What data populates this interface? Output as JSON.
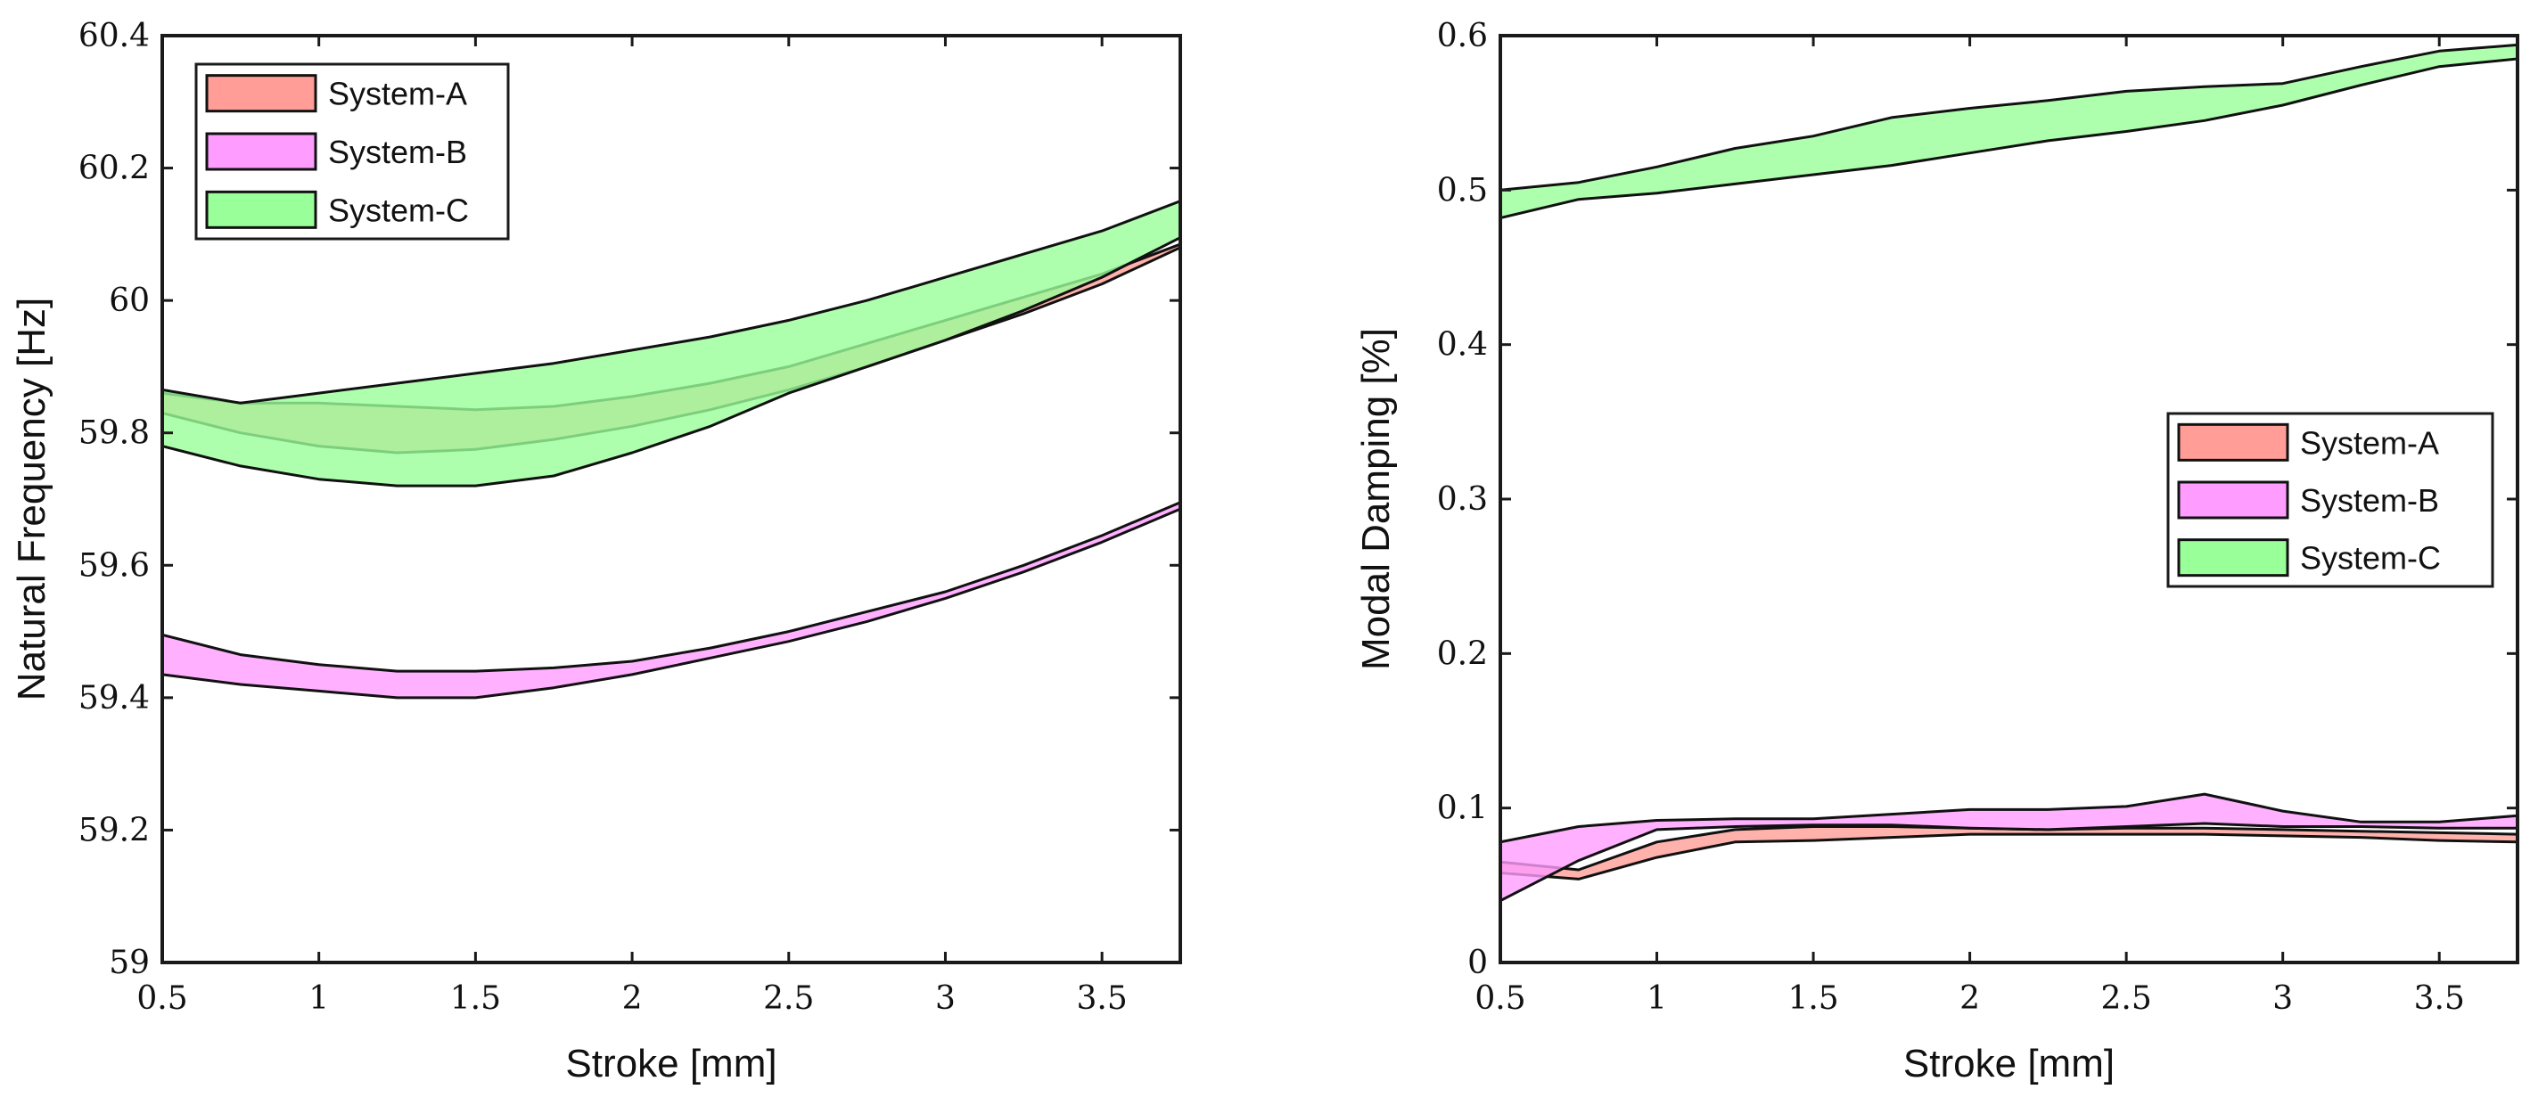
{
  "chart_data": [
    {
      "type": "area",
      "xlabel": "Stroke [mm]",
      "ylabel": "Natural Frequency [Hz]",
      "xlim": [
        0.5,
        3.75
      ],
      "ylim": [
        59,
        60.4
      ],
      "xticks": [
        0.5,
        1,
        1.5,
        2,
        2.5,
        3,
        3.5
      ],
      "xtick_labels": [
        "0.5",
        "1",
        "1.5",
        "2",
        "2.5",
        "3",
        "3.5"
      ],
      "yticks": [
        59,
        59.2,
        59.4,
        59.6,
        59.8,
        60,
        60.2,
        60.4
      ],
      "ytick_labels": [
        "59",
        "59.2",
        "59.4",
        "59.6",
        "59.8",
        "60",
        "60.2",
        "60.4"
      ],
      "grid": false,
      "legend_position": "top-left",
      "x": [
        0.5,
        0.75,
        1.0,
        1.25,
        1.5,
        1.75,
        2.0,
        2.25,
        2.5,
        2.75,
        3.0,
        3.25,
        3.5,
        3.75
      ],
      "series": [
        {
          "name": "System-A",
          "color": "#ff9d96",
          "upper": [
            59.86,
            59.845,
            59.845,
            59.84,
            59.835,
            59.84,
            59.855,
            59.875,
            59.9,
            59.935,
            59.97,
            60.005,
            60.04,
            60.085
          ],
          "lower": [
            59.83,
            59.8,
            59.78,
            59.77,
            59.775,
            59.79,
            59.81,
            59.835,
            59.865,
            59.9,
            59.94,
            59.98,
            60.025,
            60.08
          ]
        },
        {
          "name": "System-B",
          "color": "#ff9cff",
          "upper": [
            59.495,
            59.465,
            59.45,
            59.44,
            59.44,
            59.445,
            59.455,
            59.475,
            59.5,
            59.53,
            59.56,
            59.6,
            59.645,
            59.695
          ],
          "lower": [
            59.435,
            59.42,
            59.41,
            59.4,
            59.4,
            59.415,
            59.435,
            59.46,
            59.485,
            59.515,
            59.55,
            59.59,
            59.635,
            59.685
          ]
        },
        {
          "name": "System-C",
          "color": "#99ff99",
          "upper": [
            59.865,
            59.845,
            59.86,
            59.875,
            59.89,
            59.905,
            59.925,
            59.945,
            59.97,
            60.0,
            60.035,
            60.07,
            60.105,
            60.15
          ],
          "lower": [
            59.78,
            59.75,
            59.73,
            59.72,
            59.72,
            59.735,
            59.77,
            59.81,
            59.86,
            59.9,
            59.94,
            59.985,
            60.035,
            60.095
          ]
        }
      ]
    },
    {
      "type": "area",
      "xlabel": "Stroke [mm]",
      "ylabel": "Modal Damping [%]",
      "xlim": [
        0.5,
        3.75
      ],
      "ylim": [
        0,
        0.6
      ],
      "xticks": [
        0.5,
        1,
        1.5,
        2,
        2.5,
        3,
        3.5
      ],
      "xtick_labels": [
        "0.5",
        "1",
        "1.5",
        "2",
        "2.5",
        "3",
        "3.5"
      ],
      "yticks": [
        0,
        0.1,
        0.2,
        0.3,
        0.4,
        0.5,
        0.6
      ],
      "ytick_labels": [
        "0",
        "0.1",
        "0.2",
        "0.3",
        "0.4",
        "0.5",
        "0.6"
      ],
      "grid": false,
      "legend_position": "middle-right",
      "x": [
        0.5,
        0.75,
        1.0,
        1.25,
        1.5,
        1.75,
        2.0,
        2.25,
        2.5,
        2.75,
        3.0,
        3.25,
        3.5,
        3.75
      ],
      "series": [
        {
          "name": "System-A",
          "color": "#ff9d96",
          "upper": [
            0.065,
            0.06,
            0.078,
            0.086,
            0.088,
            0.088,
            0.087,
            0.086,
            0.087,
            0.087,
            0.086,
            0.085,
            0.084,
            0.083
          ],
          "lower": [
            0.058,
            0.054,
            0.068,
            0.078,
            0.079,
            0.081,
            0.083,
            0.083,
            0.083,
            0.083,
            0.082,
            0.081,
            0.079,
            0.078
          ]
        },
        {
          "name": "System-B",
          "color": "#ff9cff",
          "upper": [
            0.078,
            0.088,
            0.092,
            0.093,
            0.093,
            0.096,
            0.099,
            0.099,
            0.101,
            0.109,
            0.098,
            0.091,
            0.091,
            0.095
          ],
          "lower": [
            0.04,
            0.066,
            0.086,
            0.088,
            0.089,
            0.089,
            0.087,
            0.086,
            0.088,
            0.09,
            0.088,
            0.088,
            0.087,
            0.087
          ]
        },
        {
          "name": "System-C",
          "color": "#99ff99",
          "upper": [
            0.5,
            0.505,
            0.515,
            0.527,
            0.535,
            0.547,
            0.553,
            0.558,
            0.564,
            0.567,
            0.569,
            0.58,
            0.59,
            0.594
          ],
          "lower": [
            0.482,
            0.494,
            0.498,
            0.504,
            0.51,
            0.516,
            0.524,
            0.532,
            0.538,
            0.545,
            0.555,
            0.568,
            0.58,
            0.585
          ]
        }
      ]
    }
  ]
}
